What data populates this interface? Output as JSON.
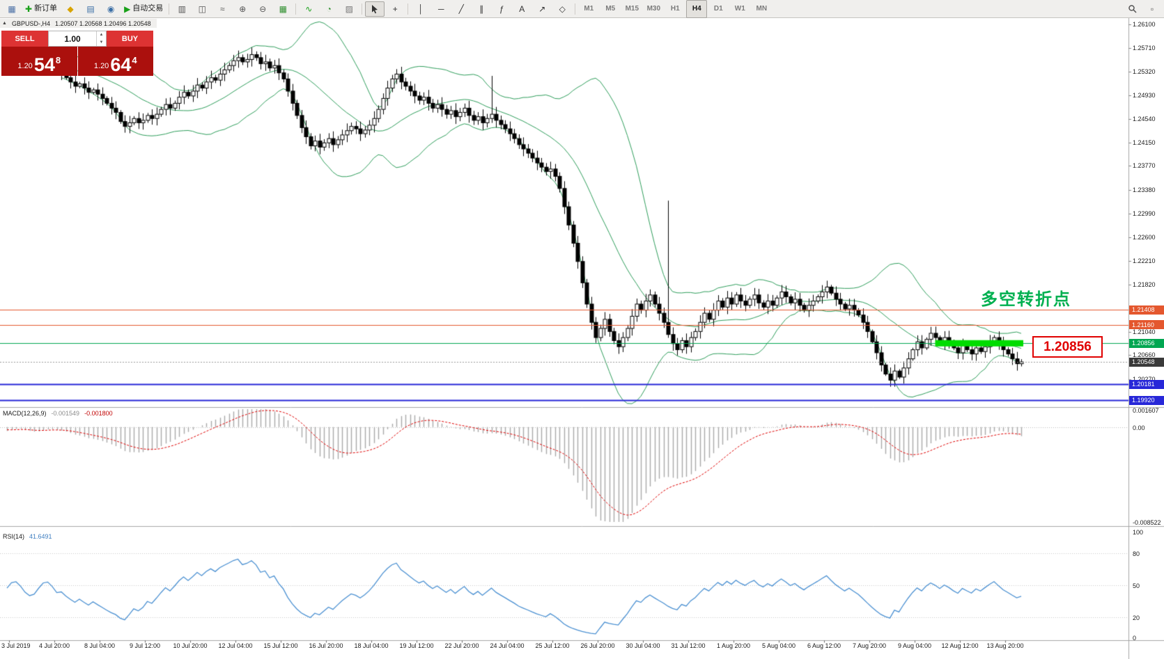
{
  "window": {
    "icon_glyph": "▲",
    "symbol_title": "GBPUSD-,H4",
    "ohlc_text": "1.20507 1.20568 1.20496 1.20548"
  },
  "toolbar": {
    "new_order_label": "新订单",
    "autotrade_label": "自动交易",
    "timeframes": [
      "M1",
      "M5",
      "M15",
      "M30",
      "H1",
      "H4",
      "D1",
      "W1",
      "MN"
    ],
    "active_timeframe": "H4",
    "items": [
      {
        "type": "icon",
        "name": "new-chart",
        "glyph": "▦",
        "color": "#4a6fa5"
      },
      {
        "type": "button",
        "name": "new-order",
        "glyph": "✚",
        "glyph_color": "#18a018",
        "label": "新订单"
      },
      {
        "type": "icon",
        "name": "history-center",
        "glyph": "◆",
        "color": "#d8a400"
      },
      {
        "type": "icon",
        "name": "market-watch",
        "glyph": "▤",
        "color": "#3a6ea5"
      },
      {
        "type": "icon",
        "name": "web-community",
        "glyph": "◉",
        "color": "#3a6ea5"
      },
      {
        "type": "button",
        "name": "autotrading",
        "glyph": "▶",
        "glyph_color": "#18a018",
        "label": "自动交易"
      },
      {
        "type": "sep"
      },
      {
        "type": "icon",
        "name": "bar-chart-mode",
        "glyph": "▥",
        "color": "#555555"
      },
      {
        "type": "icon",
        "name": "candle-chart-mode",
        "glyph": "◫",
        "color": "#555555"
      },
      {
        "type": "icon",
        "name": "line-chart-mode",
        "glyph": "≈",
        "color": "#555555"
      },
      {
        "type": "icon",
        "name": "zoom-in",
        "glyph": "⊕",
        "color": "#555555"
      },
      {
        "type": "icon",
        "name": "zoom-out",
        "glyph": "⊖",
        "color": "#555555"
      },
      {
        "type": "icon",
        "name": "tile-windows",
        "glyph": "▦",
        "color": "#2f8f2f"
      },
      {
        "type": "sep"
      },
      {
        "type": "icon",
        "name": "indicators",
        "glyph": "∿",
        "color": "#18a018"
      },
      {
        "type": "icon",
        "name": "periods",
        "glyph": "◔",
        "color": "#2f8f2f"
      },
      {
        "type": "icon",
        "name": "templates",
        "glyph": "▨",
        "color": "#777777"
      },
      {
        "type": "sep"
      },
      {
        "type": "cursor",
        "name": "cursor-tool",
        "active": true
      },
      {
        "type": "icon",
        "name": "crosshair-tool",
        "glyph": "+",
        "color": "#333333"
      },
      {
        "type": "sep"
      },
      {
        "type": "icon",
        "name": "vertical-line-tool",
        "glyph": "│",
        "color": "#333333"
      },
      {
        "type": "icon",
        "name": "horizontal-line-tool",
        "glyph": "─",
        "color": "#333333"
      },
      {
        "type": "icon",
        "name": "trendline-tool",
        "glyph": "╱",
        "color": "#333333"
      },
      {
        "type": "icon",
        "name": "channel-tool",
        "glyph": "∥",
        "color": "#333333"
      },
      {
        "type": "icon",
        "name": "fibonacci-tool",
        "glyph": "ƒ",
        "color": "#333333"
      },
      {
        "type": "icon",
        "name": "text-tool",
        "glyph": "A",
        "color": "#333333"
      },
      {
        "type": "icon",
        "name": "arrows-tool",
        "glyph": "↗",
        "color": "#333333"
      },
      {
        "type": "icon",
        "name": "shapes-tool",
        "glyph": "◇",
        "color": "#333333"
      },
      {
        "type": "sep"
      },
      {
        "type": "timeframes"
      },
      {
        "type": "spacer"
      },
      {
        "type": "mag",
        "name": "search"
      },
      {
        "type": "icon",
        "name": "new-window",
        "glyph": "▫",
        "color": "#555555"
      }
    ]
  },
  "trade_panel": {
    "sell_label": "SELL",
    "buy_label": "BUY",
    "volume": "1.00",
    "spin_up_glyph": "▲",
    "spin_down_glyph": "▼",
    "sell": {
      "prefix": "1.20",
      "big": "54",
      "sup": "8"
    },
    "buy": {
      "prefix": "1.20",
      "big": "64",
      "sup": "4"
    }
  },
  "annotations": {
    "turning_point": "多空转折点",
    "support_price": "1.20856"
  },
  "indicator_labels": {
    "macd_title": "MACD(12,26,9)",
    "macd_value1": "-0.001549",
    "macd_value2": "-0.001800",
    "rsi_title": "RSI(14)",
    "rsi_value": "41.6491"
  },
  "chart_data": {
    "type": "candlestick",
    "symbol": "GBPUSD-",
    "timeframe": "H4",
    "price_axis": {
      "min": 1.1983,
      "max": 1.262,
      "tick_labels": [
        "1.26100",
        "1.25710",
        "1.25320",
        "1.24930",
        "1.24540",
        "1.24150",
        "1.23770",
        "1.23380",
        "1.22990",
        "1.22600",
        "1.22210",
        "1.21820",
        "1.21040",
        "1.20660",
        "1.20270"
      ]
    },
    "time_axis_labels": [
      "3 Jul 2019",
      "4 Jul 20:00",
      "8 Jul 04:00",
      "9 Jul 12:00",
      "10 Jul 20:00",
      "12 Jul 04:00",
      "15 Jul 12:00",
      "16 Jul 20:00",
      "18 Jul 04:00",
      "19 Jul 12:00",
      "22 Jul 20:00",
      "24 Jul 04:00",
      "25 Jul 12:00",
      "26 Jul 20:00",
      "30 Jul 04:00",
      "31 Jul 12:00",
      "1 Aug 20:00",
      "5 Aug 04:00",
      "6 Aug 12:00",
      "7 Aug 20:00",
      "9 Aug 04:00",
      "12 Aug 12:00",
      "13 Aug 20:00"
    ],
    "slot_count": 225,
    "first_candle_slot": 12,
    "closes": [
      1.253,
      1.2522,
      1.2515,
      1.2508,
      1.2512,
      1.2505,
      1.2498,
      1.2502,
      1.2495,
      1.2488,
      1.248,
      1.2472,
      1.2465,
      1.245,
      1.2442,
      1.2448,
      1.2455,
      1.2448,
      1.2452,
      1.246,
      1.2455,
      1.2462,
      1.247,
      1.2478,
      1.2472,
      1.248,
      1.249,
      1.2498,
      1.2492,
      1.25,
      1.251,
      1.2505,
      1.2515,
      1.2522,
      1.2518,
      1.2528,
      1.2535,
      1.2542,
      1.255,
      1.2555,
      1.2548,
      1.2552,
      1.256,
      1.2555,
      1.2545,
      1.2548,
      1.2538,
      1.2542,
      1.253,
      1.252,
      1.25,
      1.248,
      1.246,
      1.244,
      1.2425,
      1.241,
      1.2418,
      1.2408,
      1.2415,
      1.2422,
      1.2412,
      1.242,
      1.2428,
      1.2435,
      1.2442,
      1.2438,
      1.243,
      1.2436,
      1.2444,
      1.2455,
      1.247,
      1.2488,
      1.2505,
      1.252,
      1.2528,
      1.2515,
      1.2508,
      1.25,
      1.2492,
      1.2485,
      1.249,
      1.248,
      1.2472,
      1.2478,
      1.247,
      1.2462,
      1.2468,
      1.2458,
      1.2465,
      1.2472,
      1.246,
      1.2452,
      1.2458,
      1.2448,
      1.2455,
      1.2462,
      1.2452,
      1.2445,
      1.2438,
      1.243,
      1.2422,
      1.2412,
      1.2405,
      1.2398,
      1.239,
      1.2382,
      1.2375,
      1.2368,
      1.2372,
      1.236,
      1.234,
      1.231,
      1.228,
      1.225,
      1.222,
      1.2185,
      1.215,
      1.212,
      1.2095,
      1.211,
      1.2125,
      1.2105,
      1.209,
      1.208,
      1.2095,
      1.211,
      1.213,
      1.215,
      1.214,
      1.2155,
      1.2165,
      1.215,
      1.2135,
      1.212,
      1.21,
      1.2085,
      1.2075,
      1.209,
      1.208,
      1.2095,
      1.2105,
      1.212,
      1.2135,
      1.2125,
      1.214,
      1.2155,
      1.2145,
      1.216,
      1.215,
      1.2165,
      1.2155,
      1.2148,
      1.2158,
      1.2165,
      1.2152,
      1.2145,
      1.2155,
      1.2148,
      1.216,
      1.217,
      1.2162,
      1.2152,
      1.2158,
      1.2148,
      1.214,
      1.2148,
      1.2155,
      1.2162,
      1.217,
      1.2178,
      1.2168,
      1.2158,
      1.215,
      1.2142,
      1.2148,
      1.214,
      1.2132,
      1.212,
      1.2105,
      1.2088,
      1.207,
      1.205,
      1.2035,
      1.2025,
      1.204,
      1.203,
      1.2045,
      1.206,
      1.2075,
      1.2088,
      1.2078,
      1.2092,
      1.2102,
      1.2095,
      1.2085,
      1.2095,
      1.2088,
      1.2078,
      1.207,
      1.2082,
      1.2075,
      1.2068,
      1.2078,
      1.2072,
      1.208,
      1.2088,
      1.2095,
      1.2085,
      1.2075,
      1.2068,
      1.206,
      1.2052,
      1.2055
    ],
    "spikes": [
      {
        "slot": 107,
        "high": 1.2525
      },
      {
        "slot": 146,
        "high": 1.232
      }
    ],
    "horizontal_levels": [
      {
        "price": 1.21408,
        "label": "1.21408",
        "color": "#E4572E",
        "line_width": 1
      },
      {
        "price": 1.2116,
        "label": "1.21160",
        "color": "#E4572E",
        "line_width": 1
      },
      {
        "price": 1.20856,
        "label": "1.20856",
        "color": "#00A651",
        "line_width": 1
      },
      {
        "price": 1.20181,
        "label": "1.20181",
        "color": "#2727D8",
        "line_width": 2
      },
      {
        "price": 1.1992,
        "label": "1.19920",
        "color": "#2727D8",
        "line_width": 2
      }
    ],
    "bid": {
      "price": 1.20548,
      "label": "1.20548",
      "tag_color": "#3A3A3A"
    },
    "support_zone": {
      "price": 1.20856,
      "from_slot": 205,
      "to_slot": 224,
      "color": "#00DC00"
    },
    "bollinger": {
      "period": 20,
      "deviation": 2,
      "color": "#2E9E5B"
    },
    "macd": {
      "fast": 12,
      "slow": 26,
      "signal": 9,
      "axis_min": -0.008522,
      "axis_max": 0.001607,
      "tick_labels": [
        "0.001607",
        "0.00",
        "-0.008522"
      ],
      "hist_color": "#A9A9A9",
      "signal_color": "#E00000"
    },
    "rsi": {
      "period": 14,
      "axis_min": 0,
      "axis_max": 100,
      "tick_labels": [
        "100",
        "80",
        "50",
        "20",
        "0"
      ],
      "levels": [
        80,
        50,
        20
      ],
      "color": "#4A90D2"
    }
  }
}
